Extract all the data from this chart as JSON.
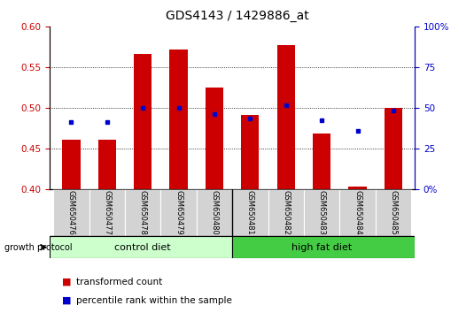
{
  "title": "GDS4143 / 1429886_at",
  "samples": [
    "GSM650476",
    "GSM650477",
    "GSM650478",
    "GSM650479",
    "GSM650480",
    "GSM650481",
    "GSM650482",
    "GSM650483",
    "GSM650484",
    "GSM650485"
  ],
  "red_values": [
    0.461,
    0.461,
    0.566,
    0.572,
    0.525,
    0.491,
    0.577,
    0.469,
    0.403,
    0.5
  ],
  "blue_values": [
    0.483,
    0.483,
    0.5,
    0.5,
    0.492,
    0.487,
    0.503,
    0.485,
    0.472,
    0.497
  ],
  "y_min": 0.4,
  "y_max": 0.6,
  "y_ticks": [
    0.4,
    0.45,
    0.5,
    0.55,
    0.6
  ],
  "right_y_ticks": [
    0,
    25,
    50,
    75,
    100
  ],
  "right_y_labels": [
    "0%",
    "25",
    "50",
    "75",
    "100%"
  ],
  "red_color": "#cc0000",
  "blue_color": "#0000cc",
  "bar_width": 0.5,
  "group_label": "growth protocol",
  "groups": [
    {
      "label": "control diet",
      "color": "#ccffcc",
      "n": 5
    },
    {
      "label": "high fat diet",
      "color": "#44cc44",
      "n": 5
    }
  ],
  "legend_red": "transformed count",
  "legend_blue": "percentile rank within the sample",
  "title_fontsize": 10,
  "tick_fontsize": 7.5,
  "sample_fontsize": 6,
  "legend_fontsize": 7.5,
  "group_fontsize": 8
}
